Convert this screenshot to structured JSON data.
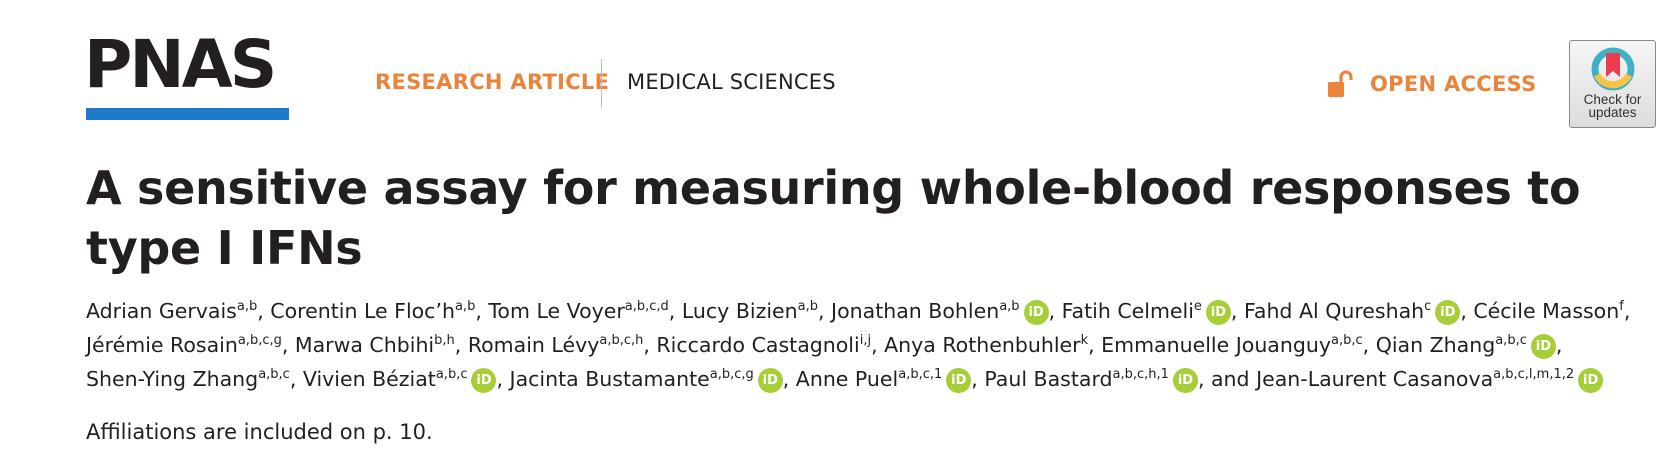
{
  "header": {
    "logo_text": "PNAS",
    "brand_color": "#1f7ac9",
    "article_type": "RESEARCH ARTICLE",
    "section": "MEDICAL SCIENCES",
    "access_label": "OPEN ACCESS",
    "access_icon": "open-lock-icon",
    "accent_color": "#e9843a",
    "check_updates_label": "Check for\nupdates"
  },
  "article": {
    "title": "A sensitive assay for measuring whole-blood responses to type I IFNs",
    "affiliations_note": "Affiliations are included on p. 10.",
    "orcid_icon_label": "iD",
    "orcid_color": "#a6ce39"
  },
  "authors": [
    {
      "name": "Adrian Gervais",
      "sup": "a,b",
      "orcid": false,
      "sep": ", "
    },
    {
      "name": "Corentin Le Floc’h",
      "sup": "a,b",
      "orcid": false,
      "sep": ", "
    },
    {
      "name": "Tom Le Voyer",
      "sup": "a,b,c,d",
      "orcid": false,
      "sep": ", "
    },
    {
      "name": "Lucy Bizien",
      "sup": "a,b",
      "orcid": false,
      "sep": ", "
    },
    {
      "name": "Jonathan Bohlen",
      "sup": "a,b",
      "orcid": true,
      "sep": ", "
    },
    {
      "name": "Fatih Celmeli",
      "sup": "e",
      "orcid": true,
      "sep": ", "
    },
    {
      "name": "Fahd Al Qureshah",
      "sup": "c",
      "orcid": true,
      "sep": ", "
    },
    {
      "name": "Cécile Masson",
      "sup": "f",
      "orcid": false,
      "sep": ",",
      "break_after": true
    },
    {
      "name": "Jérémie Rosain",
      "sup": "a,b,c,g",
      "orcid": false,
      "sep": ", "
    },
    {
      "name": "Marwa Chbihi",
      "sup": "b,h",
      "orcid": false,
      "sep": ", "
    },
    {
      "name": "Romain Lévy",
      "sup": "a,b,c,h",
      "orcid": false,
      "sep": ", "
    },
    {
      "name": "Riccardo Castagnoli",
      "sup": "i,j",
      "orcid": false,
      "sep": ", "
    },
    {
      "name": "Anya Rothenbuhler",
      "sup": "k",
      "orcid": false,
      "sep": ", "
    },
    {
      "name": "Emmanuelle Jouanguy",
      "sup": "a,b,c",
      "orcid": false,
      "sep": ", "
    },
    {
      "name": "Qian Zhang",
      "sup": "a,b,c",
      "orcid": true,
      "sep": ",",
      "break_after": true
    },
    {
      "name": "Shen-Ying Zhang",
      "sup": "a,b,c",
      "orcid": false,
      "sep": ", "
    },
    {
      "name": "Vivien Béziat",
      "sup": "a,b,c",
      "orcid": true,
      "sep": ", "
    },
    {
      "name": "Jacinta Bustamante",
      "sup": "a,b,c,g",
      "orcid": true,
      "sep": ", "
    },
    {
      "name": "Anne Puel",
      "sup": "a,b,c,1",
      "orcid": true,
      "sep": ", "
    },
    {
      "name": "Paul Bastard",
      "sup": "a,b,c,h,1",
      "orcid": true,
      "sep": ", and "
    },
    {
      "name": "Jean-Laurent Casanova",
      "sup": "a,b,c,l,m,1,2",
      "orcid": true,
      "sep": ""
    }
  ]
}
